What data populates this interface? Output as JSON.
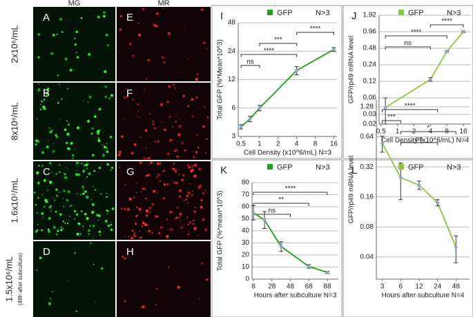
{
  "columns": [
    "MG",
    "MR"
  ],
  "rows": [
    {
      "label": "2x10⁶/mL",
      "panels": [
        "A",
        "E"
      ]
    },
    {
      "label": "8x10⁶/mL",
      "panels": [
        "B",
        "F"
      ]
    },
    {
      "label": "1.6x10⁷/mL",
      "panels": [
        "C",
        "G"
      ]
    },
    {
      "label": "1.5x10⁶/mL",
      "note": "(48h after subculture)",
      "panels": [
        "D",
        "H"
      ]
    }
  ],
  "chart_data": [
    {
      "type": "line",
      "panel": "I",
      "legend_note": "N>3",
      "x_label": "Cell Density (x10^6/mL) N=3",
      "y_label": "Total GFP (%*Mean*10^3)",
      "xscale": "log",
      "yscale": "log",
      "xlim": [
        0.45,
        18
      ],
      "ylim": [
        3,
        48
      ],
      "xticks": [
        0.5,
        1,
        2,
        4,
        8,
        16
      ],
      "yticks": [
        3,
        6,
        12,
        24,
        48
      ],
      "grid": true,
      "x": [
        0.5,
        0.7,
        1,
        4,
        16
      ],
      "series": [
        {
          "name": "GFP",
          "color": "#1e9e1e",
          "values": [
            3.8,
            4.6,
            6.0,
            15,
            25
          ],
          "errors": [
            0.2,
            0.3,
            0.4,
            1.5,
            1.2
          ]
        }
      ],
      "brackets": [
        {
          "label": "****",
          "x": [
            4,
            16
          ]
        },
        {
          "label": "***",
          "x": [
            1,
            4
          ]
        },
        {
          "label": "****",
          "x": [
            0.5,
            4
          ]
        },
        {
          "label": "ns",
          "x": [
            0.5,
            1
          ]
        }
      ]
    },
    {
      "type": "line",
      "panel": "J",
      "legend_note": "N>3",
      "x_label": "Cell Density (x10^6/mL) N=4",
      "y_label": "GFP/rp49 mRNA level",
      "xscale": "log",
      "yscale": "log",
      "xlim": [
        0.46,
        22
      ],
      "ylim": [
        0.02,
        1.92
      ],
      "xticks": [
        0.5,
        1,
        2,
        4,
        8,
        16
      ],
      "yticks": [
        0.02,
        0.03,
        0.06,
        0.12,
        0.24,
        0.48,
        0.96,
        1.92
      ],
      "grid": true,
      "x": [
        0.6,
        4,
        8,
        16
      ],
      "series": [
        {
          "name": "GFP",
          "color": "#8cc63f",
          "values": [
            0.04,
            0.13,
            0.42,
            0.96
          ],
          "errors": [
            0.02,
            0.01,
            0.02,
            0.04
          ]
        }
      ],
      "brackets": [
        {
          "label": "****",
          "x": [
            4,
            16
          ]
        },
        {
          "label": "****",
          "x": [
            0.6,
            8
          ]
        },
        {
          "label": "ns",
          "x": [
            0.6,
            4
          ]
        }
      ]
    },
    {
      "type": "line",
      "panel": "K",
      "legend_note": "N>3",
      "x_label": "Hours after subculture N=3",
      "y_label": "Total GFP (%*mean*10^3)",
      "xscale": "linear",
      "yscale": "linear",
      "xlim": [
        6.5,
        100
      ],
      "ylim": [
        0,
        80
      ],
      "xticks": [
        8,
        28,
        48,
        68,
        88
      ],
      "yticks": [
        0,
        10,
        20,
        30,
        40,
        50,
        60,
        70,
        80
      ],
      "grid": true,
      "x": [
        8,
        20,
        38,
        68,
        88
      ],
      "series": [
        {
          "name": "GFP",
          "color": "#1e9e1e",
          "values": [
            55,
            49,
            27,
            10.5,
            5.5
          ],
          "errors": [
            6,
            7,
            4,
            1.5,
            1
          ]
        }
      ],
      "brackets": [
        {
          "label": "****",
          "x": [
            8,
            88
          ]
        },
        {
          "label": "**",
          "x": [
            8,
            68
          ]
        },
        {
          "label": "ns",
          "x": [
            8,
            48
          ]
        }
      ]
    },
    {
      "type": "line",
      "panel": "L",
      "legend_note": "N>3",
      "x_label": "Hours after subculture N=4",
      "y_label": "GFP/rp49 mRNA level",
      "xscale": "log",
      "yscale": "log",
      "xlim": [
        2.4,
        80
      ],
      "ylim": [
        0.024,
        1.5
      ],
      "xticks": [
        3,
        6,
        12,
        24,
        48
      ],
      "yticks": [
        0.04,
        0.08,
        0.16,
        0.32,
        0.64,
        1.28
      ],
      "grid": true,
      "x": [
        3,
        6,
        12,
        24,
        48
      ],
      "series": [
        {
          "name": "GFP",
          "color": "#8cc63f",
          "values": [
            0.55,
            0.25,
            0.21,
            0.14,
            0.05
          ],
          "errors": [
            0.1,
            0.1,
            0.02,
            0.01,
            0.015
          ]
        }
      ],
      "brackets": [
        {
          "label": "****",
          "x": [
            3,
            24
          ]
        },
        {
          "label": "***",
          "x": [
            3,
            6
          ]
        },
        {
          "label": "*",
          "x": [
            6,
            48
          ]
        },
        {
          "label": "ns",
          "x": [
            6,
            24
          ]
        }
      ]
    }
  ]
}
